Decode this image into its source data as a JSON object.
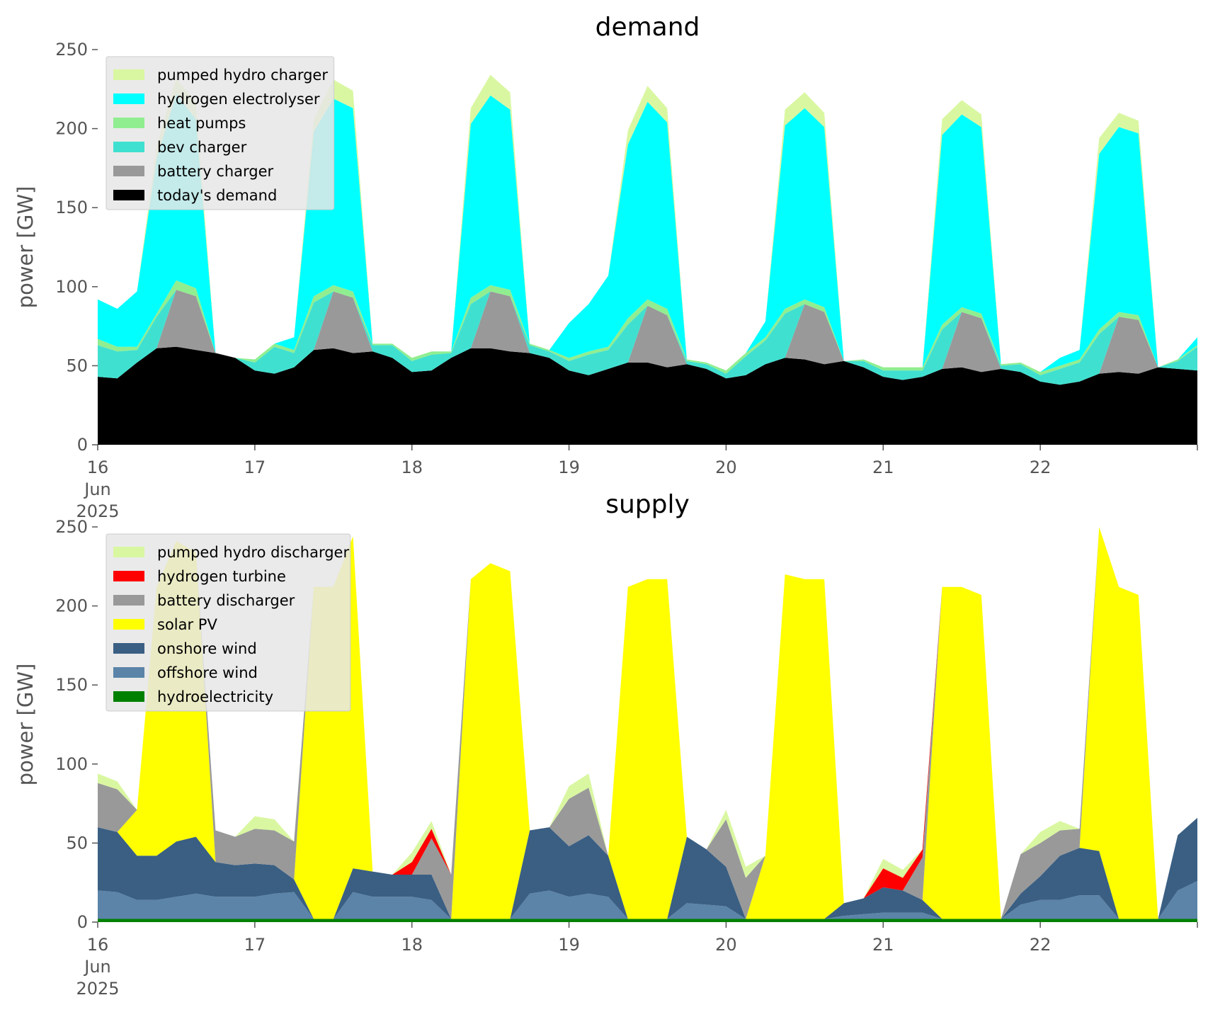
{
  "chart_data": [
    {
      "type": "area",
      "stacked": true,
      "title": "demand",
      "ylabel": "power [GW]",
      "xlabel": "",
      "ylim": [
        0,
        250
      ],
      "yticks": [
        0,
        50,
        100,
        150,
        200,
        250
      ],
      "xlim": [
        0,
        7
      ],
      "x_tick_values": [
        0,
        1,
        2,
        3,
        4,
        5,
        6
      ],
      "x_tick_labels": [
        [
          "16",
          "Jun",
          "2025"
        ],
        [
          "17"
        ],
        [
          "18"
        ],
        [
          "19"
        ],
        [
          "20"
        ],
        [
          "21"
        ],
        [
          "22"
        ]
      ],
      "legend_position": "upper-left",
      "grid": false,
      "x": [
        0,
        0.125,
        0.25,
        0.375,
        0.5,
        0.625,
        0.75,
        0.875,
        1,
        1.125,
        1.25,
        1.375,
        1.5,
        1.625,
        1.75,
        1.875,
        2,
        2.125,
        2.25,
        2.375,
        2.5,
        2.625,
        2.75,
        2.875,
        3,
        3.125,
        3.25,
        3.375,
        3.5,
        3.625,
        3.75,
        3.875,
        4,
        4.125,
        4.25,
        4.375,
        4.5,
        4.625,
        4.75,
        4.875,
        5,
        5.125,
        5.25,
        5.375,
        5.5,
        5.625,
        5.75,
        5.875,
        6,
        6.125,
        6.25,
        6.375,
        6.5,
        6.625,
        6.75,
        6.875,
        7
      ],
      "series": [
        {
          "name": "today's demand",
          "color": "#000000",
          "values": [
            43,
            42,
            52,
            61,
            62,
            60,
            58,
            55,
            47,
            45,
            49,
            60,
            61,
            58,
            59,
            55,
            46,
            47,
            55,
            61,
            61,
            59,
            58,
            55,
            47,
            44,
            48,
            52,
            52,
            49,
            51,
            48,
            42,
            44,
            51,
            55,
            54,
            51,
            53,
            49,
            43,
            41,
            43,
            48,
            49,
            46,
            48,
            46,
            40,
            38,
            40,
            45,
            46,
            45,
            49,
            48,
            47
          ]
        },
        {
          "name": "battery charger",
          "color": "#999999",
          "values": [
            0,
            0,
            0,
            0,
            36,
            34,
            0,
            0,
            0,
            0,
            0,
            0,
            36,
            35,
            0,
            0,
            0,
            0,
            0,
            0,
            36,
            35,
            0,
            0,
            0,
            0,
            0,
            0,
            36,
            33,
            0,
            0,
            0,
            0,
            0,
            0,
            35,
            33,
            0,
            0,
            0,
            0,
            0,
            0,
            35,
            34,
            0,
            0,
            0,
            0,
            0,
            0,
            35,
            34,
            0,
            0,
            0
          ]
        },
        {
          "name": "bev charger",
          "color": "#40e0d0",
          "values": [
            20,
            17,
            8,
            20,
            0,
            0,
            0,
            0,
            5,
            17,
            9,
            30,
            0,
            0,
            4,
            8,
            7,
            10,
            3,
            28,
            0,
            0,
            5,
            4,
            6,
            13,
            12,
            24,
            0,
            0,
            2,
            3,
            3,
            12,
            15,
            28,
            0,
            0,
            0,
            4,
            4,
            6,
            4,
            25,
            0,
            0,
            2,
            5,
            4,
            10,
            12,
            25,
            0,
            0,
            0,
            5,
            15
          ]
        },
        {
          "name": "heat pumps",
          "color": "#90ee90",
          "values": [
            4,
            3,
            2,
            2,
            6,
            5,
            0,
            0,
            2,
            2,
            2,
            4,
            4,
            4,
            1,
            1,
            2,
            2,
            1,
            4,
            4,
            4,
            1,
            1,
            2,
            2,
            2,
            4,
            4,
            4,
            1,
            1,
            2,
            2,
            2,
            3,
            3,
            3,
            0,
            1,
            2,
            2,
            2,
            3,
            3,
            3,
            1,
            1,
            2,
            2,
            2,
            3,
            3,
            3,
            0,
            1,
            1
          ]
        },
        {
          "name": "hydrogen electrolyser",
          "color": "#00ffff",
          "values": [
            25,
            24,
            35,
            98,
            118,
            107,
            0,
            0,
            0,
            0,
            8,
            104,
            118,
            116,
            0,
            0,
            0,
            0,
            0,
            110,
            120,
            114,
            0,
            0,
            22,
            30,
            45,
            110,
            125,
            118,
            0,
            0,
            0,
            0,
            10,
            116,
            121,
            114,
            0,
            0,
            0,
            0,
            0,
            120,
            122,
            118,
            0,
            0,
            0,
            5,
            6,
            111,
            117,
            115,
            0,
            0,
            5
          ]
        },
        {
          "name": "pumped hydro charger",
          "color": "#d9f7a1",
          "values": [
            0,
            0,
            0,
            8,
            10,
            10,
            0,
            0,
            0,
            0,
            0,
            8,
            12,
            11,
            0,
            0,
            0,
            0,
            0,
            10,
            13,
            11,
            0,
            0,
            0,
            0,
            0,
            9,
            10,
            9,
            0,
            0,
            0,
            0,
            0,
            10,
            10,
            9,
            0,
            0,
            0,
            0,
            0,
            10,
            9,
            8,
            0,
            0,
            0,
            0,
            0,
            10,
            9,
            8,
            0,
            0,
            0
          ]
        }
      ],
      "legend_order": [
        "pumped hydro charger",
        "hydrogen electrolyser",
        "heat pumps",
        "bev charger",
        "battery charger",
        "today's demand"
      ]
    },
    {
      "type": "area",
      "stacked": true,
      "title": "supply",
      "ylabel": "power [GW]",
      "xlabel": "",
      "ylim": [
        0,
        250
      ],
      "yticks": [
        0,
        50,
        100,
        150,
        200,
        250
      ],
      "xlim": [
        0,
        7
      ],
      "x_tick_values": [
        0,
        1,
        2,
        3,
        4,
        5,
        6
      ],
      "x_tick_labels": [
        [
          "16",
          "Jun",
          "2025"
        ],
        [
          "17"
        ],
        [
          "18"
        ],
        [
          "19"
        ],
        [
          "20"
        ],
        [
          "21"
        ],
        [
          "22"
        ]
      ],
      "legend_position": "upper-left",
      "grid": false,
      "x": [
        0,
        0.125,
        0.25,
        0.375,
        0.5,
        0.625,
        0.75,
        0.875,
        1,
        1.125,
        1.25,
        1.375,
        1.5,
        1.625,
        1.75,
        1.875,
        2,
        2.125,
        2.25,
        2.375,
        2.5,
        2.625,
        2.75,
        2.875,
        3,
        3.125,
        3.25,
        3.375,
        3.5,
        3.625,
        3.75,
        3.875,
        4,
        4.125,
        4.25,
        4.375,
        4.5,
        4.625,
        4.75,
        4.875,
        5,
        5.125,
        5.25,
        5.375,
        5.5,
        5.625,
        5.75,
        5.875,
        6,
        6.125,
        6.25,
        6.375,
        6.5,
        6.625,
        6.75,
        6.875,
        7
      ],
      "series": [
        {
          "name": "hydroelectricity",
          "color": "#008000",
          "values": [
            2,
            2,
            2,
            2,
            2,
            2,
            2,
            2,
            2,
            2,
            2,
            2,
            2,
            2,
            2,
            2,
            2,
            2,
            2,
            2,
            2,
            2,
            2,
            2,
            2,
            2,
            2,
            2,
            2,
            2,
            2,
            2,
            2,
            2,
            2,
            2,
            2,
            2,
            2,
            2,
            2,
            2,
            2,
            2,
            2,
            2,
            2,
            2,
            2,
            2,
            2,
            2,
            2,
            2,
            2,
            2,
            2
          ]
        },
        {
          "name": "offshore wind",
          "color": "#5b84a8",
          "values": [
            18,
            17,
            12,
            12,
            14,
            16,
            14,
            14,
            14,
            16,
            17,
            0,
            0,
            17,
            14,
            14,
            14,
            12,
            0,
            0,
            0,
            0,
            16,
            18,
            14,
            16,
            14,
            0,
            0,
            0,
            10,
            9,
            8,
            0,
            0,
            0,
            0,
            0,
            2,
            3,
            4,
            4,
            4,
            0,
            0,
            0,
            0,
            9,
            12,
            12,
            15,
            15,
            0,
            0,
            0,
            18,
            24
          ]
        },
        {
          "name": "onshore wind",
          "color": "#3a5f83",
          "values": [
            40,
            38,
            28,
            28,
            35,
            36,
            22,
            20,
            21,
            18,
            8,
            0,
            0,
            15,
            16,
            14,
            14,
            16,
            0,
            0,
            0,
            0,
            40,
            40,
            32,
            37,
            26,
            0,
            0,
            0,
            42,
            35,
            25,
            0,
            0,
            0,
            0,
            0,
            8,
            10,
            16,
            14,
            8,
            0,
            0,
            0,
            0,
            7,
            15,
            28,
            30,
            28,
            0,
            0,
            0,
            35,
            40
          ]
        },
        {
          "name": "solar PV",
          "color": "#ffff00",
          "values": [
            0,
            0,
            29,
            170,
            190,
            180,
            0,
            0,
            0,
            0,
            0,
            210,
            210,
            210,
            0,
            0,
            0,
            0,
            0,
            215,
            225,
            220,
            0,
            0,
            0,
            0,
            0,
            210,
            215,
            215,
            0,
            0,
            0,
            0,
            40,
            218,
            215,
            215,
            0,
            0,
            0,
            0,
            0,
            210,
            210,
            205,
            0,
            0,
            0,
            0,
            0,
            205,
            210,
            205,
            0,
            0,
            0
          ]
        },
        {
          "name": "battery discharger",
          "color": "#999999",
          "values": [
            28,
            27,
            0,
            0,
            0,
            0,
            20,
            18,
            22,
            22,
            24,
            0,
            0,
            0,
            0,
            0,
            0,
            23,
            28,
            0,
            0,
            0,
            0,
            0,
            30,
            30,
            0,
            0,
            0,
            0,
            0,
            0,
            30,
            26,
            0,
            0,
            0,
            0,
            0,
            0,
            0,
            0,
            27,
            0,
            0,
            0,
            0,
            25,
            21,
            16,
            12,
            0,
            0,
            0,
            0,
            0,
            0
          ]
        },
        {
          "name": "hydrogen turbine",
          "color": "#ff0000",
          "values": [
            0,
            0,
            0,
            0,
            0,
            0,
            0,
            0,
            0,
            0,
            0,
            0,
            0,
            0,
            0,
            0,
            8,
            6,
            0,
            0,
            0,
            0,
            0,
            0,
            0,
            0,
            0,
            0,
            0,
            0,
            0,
            0,
            0,
            0,
            0,
            0,
            0,
            0,
            0,
            0,
            12,
            8,
            5,
            0,
            0,
            0,
            0,
            0,
            0,
            0,
            0,
            0,
            0,
            0,
            0,
            0,
            0
          ]
        },
        {
          "name": "pumped hydro discharger",
          "color": "#d9f7a1",
          "values": [
            6,
            5,
            0,
            0,
            0,
            0,
            0,
            0,
            8,
            7,
            0,
            0,
            0,
            0,
            0,
            0,
            6,
            5,
            0,
            0,
            0,
            0,
            0,
            0,
            8,
            9,
            0,
            0,
            0,
            0,
            0,
            0,
            6,
            7,
            0,
            0,
            0,
            0,
            0,
            0,
            6,
            5,
            0,
            0,
            0,
            0,
            0,
            0,
            7,
            6,
            0,
            0,
            0,
            0,
            0,
            0,
            0
          ]
        }
      ],
      "legend_order": [
        "pumped hydro discharger",
        "hydrogen turbine",
        "battery discharger",
        "solar PV",
        "onshore wind",
        "offshore wind",
        "hydroelectricity"
      ]
    }
  ]
}
